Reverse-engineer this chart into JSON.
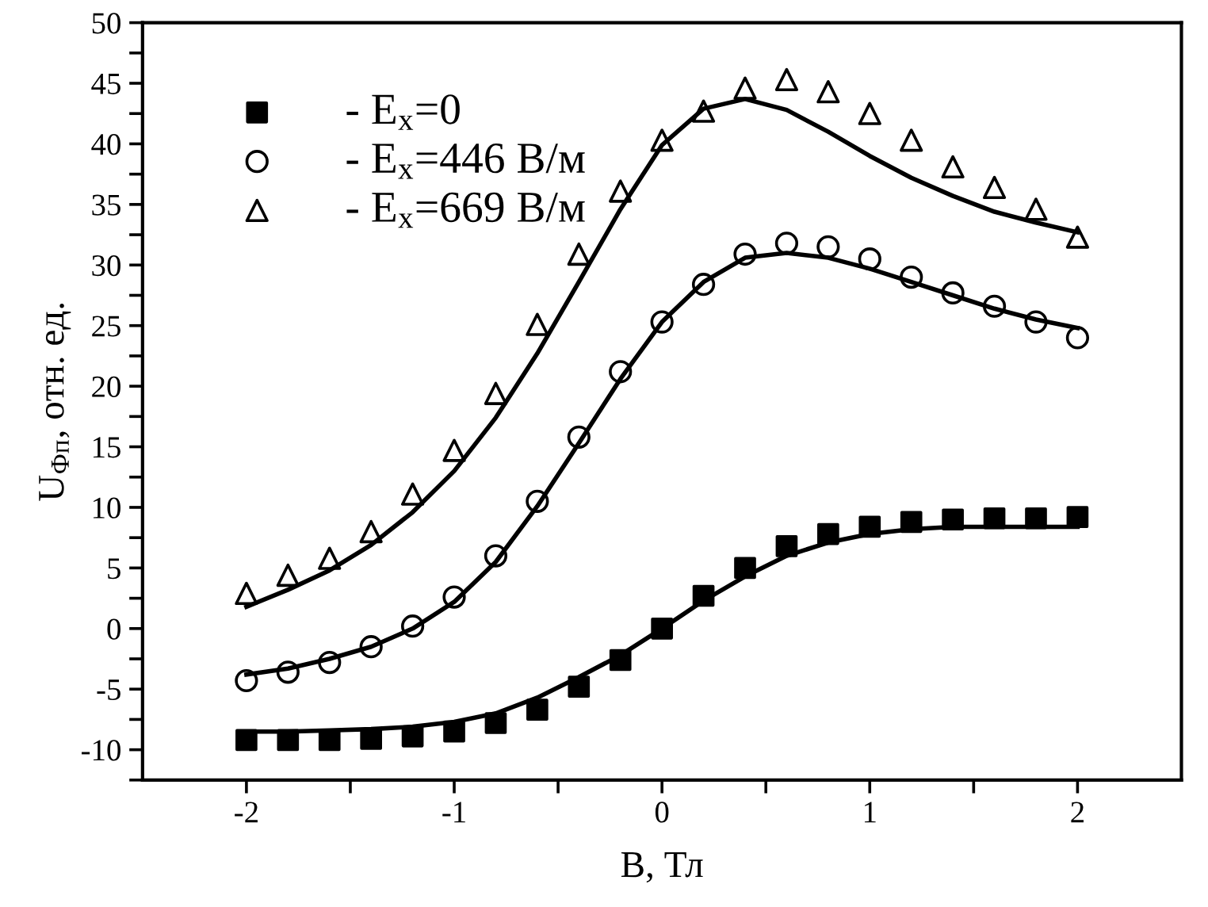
{
  "chart_data": {
    "type": "scatter",
    "xlabel": "B, Тл",
    "ylabel": "U$_{Фп}$, отн. ед.",
    "x": [
      -2,
      -1.8,
      -1.6,
      -1.4,
      -1.2,
      -1,
      -0.8,
      -0.6,
      -0.4,
      -0.2,
      0,
      0.2,
      0.4,
      0.6,
      0.8,
      1,
      1.2,
      1.4,
      1.6,
      1.8,
      2
    ],
    "series": [
      {
        "name": "- E$_{x}$=0",
        "color": "#000000",
        "marker": "square",
        "values": [
          -9.2,
          -9.2,
          -9.2,
          -9.1,
          -8.9,
          -8.5,
          -7.8,
          -6.7,
          -4.8,
          -2.6,
          0,
          2.7,
          5,
          6.8,
          7.8,
          8.4,
          8.8,
          9,
          9.1,
          9.1,
          9.2
        ]
      },
      {
        "name": "- E$_{x}$=446 В/м",
        "color": "#000000",
        "marker": "circle",
        "values": [
          -4.3,
          -3.6,
          -2.8,
          -1.5,
          0.2,
          2.6,
          6,
          10.5,
          15.8,
          21.2,
          25.3,
          28.4,
          30.9,
          31.8,
          31.5,
          30.5,
          29,
          27.7,
          26.6,
          25.3,
          24
        ]
      },
      {
        "name": "- E$_{x}$=669 В/м",
        "color": "#000000",
        "marker": "triangle",
        "values": [
          2.9,
          4.4,
          5.8,
          8,
          11.1,
          14.7,
          19.4,
          25.1,
          30.9,
          36.1,
          40.3,
          42.7,
          44.6,
          45.3,
          44.3,
          42.5,
          40.3,
          38.1,
          36.4,
          34.6,
          32.3
        ]
      },
      {
        "type": "line",
        "color": "#000000",
        "marker": "none",
        "values": [
          -8.5,
          -8.5,
          -8.4,
          -8.3,
          -8.1,
          -7.7,
          -7,
          -5.7,
          -4,
          -2.2,
          0,
          2.3,
          4.3,
          6,
          7.1,
          7.8,
          8.2,
          8.4,
          8.4,
          8.4,
          8.4
        ]
      },
      {
        "type": "line",
        "color": "#000000",
        "marker": "none",
        "values": [
          -3.8,
          -3.3,
          -2.5,
          -1.5,
          0,
          2.2,
          5.5,
          10.1,
          15.3,
          20.6,
          25.3,
          28.6,
          30.6,
          31,
          30.6,
          29.7,
          28.6,
          27.5,
          26.4,
          25.5,
          24.8
        ]
      },
      {
        "type": "line",
        "color": "#000000",
        "marker": "none",
        "values": [
          1.8,
          3.2,
          4.8,
          6.9,
          9.6,
          13,
          17.4,
          22.7,
          28.6,
          34.6,
          39.9,
          42.9,
          43.7,
          42.8,
          41,
          39,
          37.2,
          35.7,
          34.4,
          33.5,
          32.7
        ]
      }
    ],
    "xlim": [
      -2.5,
      2.5
    ],
    "xticks": [
      -2,
      {
        "value": -1.5,
        "label": null
      },
      -1,
      {
        "value": -0.5,
        "label": null
      },
      0,
      {
        "value": 0.5,
        "label": null
      },
      1,
      {
        "value": 1.5,
        "label": null
      },
      2
    ],
    "ylim": [
      -12.5,
      50
    ],
    "yticks": [
      {
        "value": -12.5,
        "label": null
      },
      -10,
      {
        "value": -7.5,
        "label": null
      },
      -5,
      {
        "value": -2.5,
        "label": null
      },
      0,
      {
        "value": 2.5,
        "label": null
      },
      5,
      {
        "value": 7.5,
        "label": null
      },
      10,
      {
        "value": 12.5,
        "label": null
      },
      15,
      {
        "value": 17.5,
        "label": null
      },
      20,
      {
        "value": 22.5,
        "label": null
      },
      25,
      {
        "value": 27.5,
        "label": null
      },
      30,
      {
        "value": 32.5,
        "label": null
      },
      35,
      {
        "value": 37.5,
        "label": null
      },
      40,
      {
        "value": 42.5,
        "label": null
      },
      45,
      {
        "value": 47.5,
        "label": null
      },
      50
    ],
    "grid": false,
    "legend": "top left"
  }
}
